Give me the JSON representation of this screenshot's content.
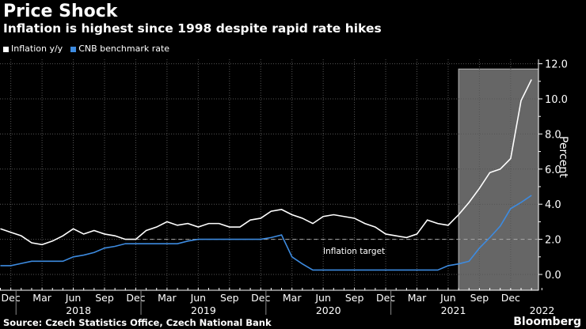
{
  "title": "Price Shock",
  "subtitle": "Inflation is highest since 1998 despite rapid rate hikes",
  "source": "Source: Czech Statistics Office, Czech National Bank",
  "brand": "Bloomberg",
  "chart_data": {
    "type": "line",
    "ylabel": "Percent",
    "ylim": [
      -0.9,
      12.0
    ],
    "yticks": [
      "0.0",
      "2.0",
      "4.0",
      "6.0",
      "8.0",
      "10.0",
      "12.0"
    ],
    "x_start": "Nov 2017",
    "x_end": "Feb 2022",
    "frequency": "monthly",
    "month_ticks": [
      "Dec",
      "Mar",
      "Jun",
      "Sep",
      "Dec",
      "Mar",
      "Jun",
      "Sep",
      "Dec",
      "Mar",
      "Jun",
      "Sep",
      "Dec",
      "Mar",
      "Jun",
      "Sep",
      "Dec"
    ],
    "year_labels": [
      "2018",
      "2019",
      "2020",
      "2021",
      "2022"
    ],
    "annotation": "Inflation target",
    "target": 2.0,
    "shaded_from": "Jul 2021",
    "colors": {
      "inflation": "#ffffff",
      "rate": "#3d8be0",
      "shade": "#666666"
    },
    "series": [
      {
        "name": "Inflation y/y",
        "values": [
          2.6,
          2.4,
          2.2,
          1.8,
          1.7,
          1.9,
          2.2,
          2.6,
          2.3,
          2.5,
          2.3,
          2.2,
          2.0,
          2.0,
          2.5,
          2.7,
          3.0,
          2.8,
          2.9,
          2.7,
          2.9,
          2.9,
          2.7,
          2.7,
          3.1,
          3.2,
          3.6,
          3.7,
          3.4,
          3.2,
          2.9,
          3.3,
          3.4,
          3.3,
          3.2,
          2.9,
          2.7,
          2.3,
          2.2,
          2.1,
          2.3,
          3.1,
          2.9,
          2.8,
          3.4,
          4.1,
          4.9,
          5.8,
          6.0,
          6.6,
          9.9,
          11.1
        ]
      },
      {
        "name": "CNB benchmark rate",
        "values": [
          0.5,
          0.5,
          0.625,
          0.75,
          0.75,
          0.75,
          0.75,
          1.0,
          1.1,
          1.25,
          1.5,
          1.6,
          1.75,
          1.75,
          1.75,
          1.75,
          1.75,
          1.75,
          1.9,
          2.0,
          2.0,
          2.0,
          2.0,
          2.0,
          2.0,
          2.0,
          2.1,
          2.25,
          1.0,
          0.6,
          0.25,
          0.25,
          0.25,
          0.25,
          0.25,
          0.25,
          0.25,
          0.25,
          0.25,
          0.25,
          0.25,
          0.25,
          0.25,
          0.5,
          0.6,
          0.75,
          1.5,
          2.1,
          2.75,
          3.75,
          4.1,
          4.5
        ]
      }
    ]
  }
}
